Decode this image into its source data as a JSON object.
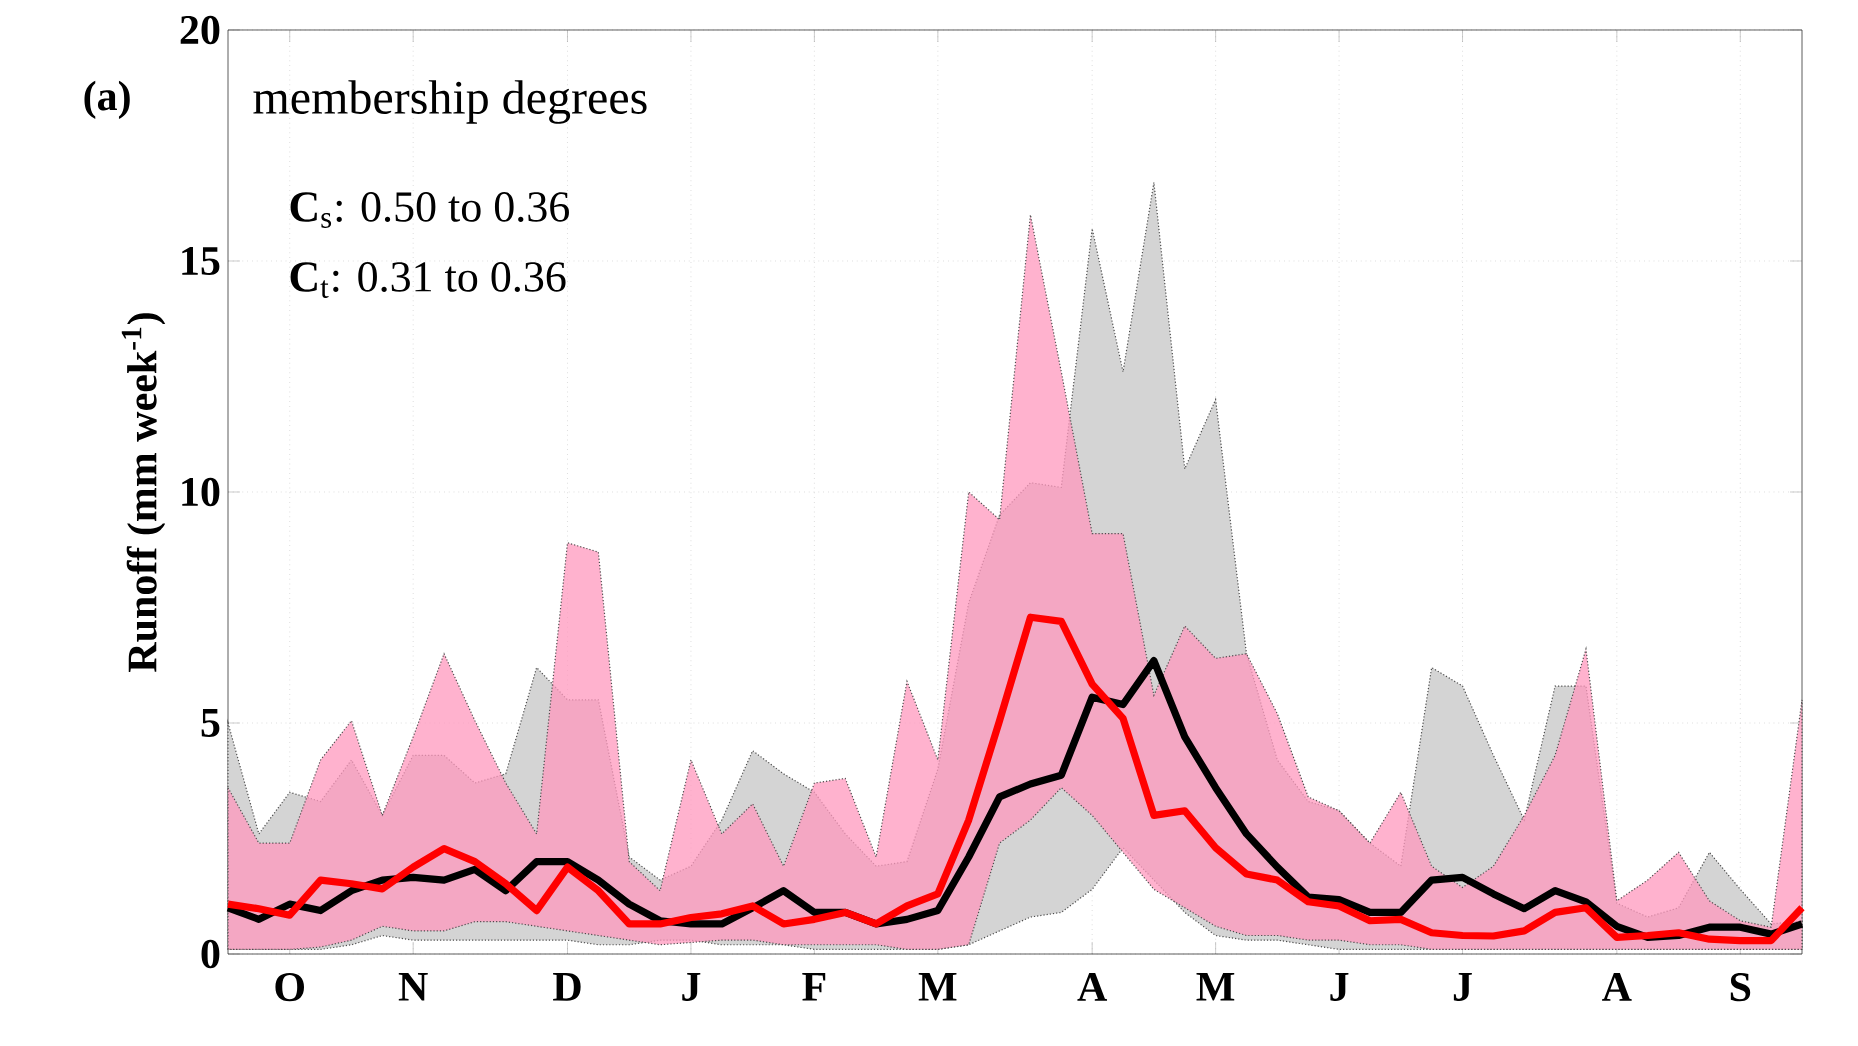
{
  "chart_data": {
    "type": "line",
    "ylabel": "Runoff (mm week$^{-1}$)",
    "annotations": [
      "(a)",
      "membership degrees",
      "**C**$_{s}$: 0.50 to 0.36",
      "**C**$_{t}$: 0.31 to 0.36"
    ],
    "categories": [
      null,
      null,
      "O",
      null,
      null,
      null,
      "N",
      null,
      null,
      null,
      null,
      "D",
      null,
      null,
      null,
      "J",
      null,
      null,
      null,
      "F",
      null,
      null,
      null,
      "M",
      null,
      null,
      null,
      null,
      "A",
      null,
      null,
      null,
      "M",
      null,
      null,
      null,
      "J",
      null,
      null,
      null,
      "J",
      null,
      null,
      null,
      null,
      "A",
      null,
      null,
      null,
      "S",
      null,
      null
    ],
    "series": [
      {
        "color": "#000000",
        "values": [
          1.0,
          0.75,
          1.08,
          0.94,
          1.37,
          1.6,
          1.66,
          1.6,
          1.83,
          1.37,
          2.0,
          2.0,
          1.6,
          1.08,
          0.72,
          0.65,
          0.65,
          1.0,
          1.37,
          0.9,
          0.9,
          0.65,
          0.75,
          0.94,
          2.1,
          3.4,
          3.68,
          3.87,
          5.56,
          5.4,
          6.35,
          4.7,
          3.6,
          2.6,
          1.88,
          1.23,
          1.18,
          0.9,
          0.9,
          1.6,
          1.66,
          1.3,
          0.98,
          1.37,
          1.13,
          0.6,
          0.36,
          0.4,
          0.58,
          0.58,
          0.43,
          0.65
        ],
        "lower": [
          0.1,
          0.1,
          0.1,
          0.1,
          0.2,
          0.4,
          0.3,
          0.3,
          0.3,
          0.3,
          0.3,
          0.3,
          0.2,
          0.2,
          0.3,
          0.3,
          0.2,
          0.2,
          0.2,
          0.1,
          0.1,
          0.1,
          0.1,
          0.1,
          0.2,
          0.5,
          0.8,
          0.9,
          1.4,
          2.3,
          1.6,
          0.9,
          0.4,
          0.3,
          0.3,
          0.2,
          0.1,
          0.1,
          0.1,
          0.1,
          0.1,
          0.1,
          0.1,
          0.1,
          0.1,
          0.1,
          0.1,
          0.1,
          0.1,
          0.1,
          0.1,
          0.1
        ],
        "upper": [
          5.0,
          2.6,
          3.5,
          3.3,
          4.2,
          3.0,
          4.3,
          4.3,
          3.7,
          3.9,
          6.2,
          5.5,
          5.5,
          2.1,
          1.6,
          1.9,
          2.9,
          4.4,
          3.9,
          3.5,
          2.6,
          1.9,
          2.0,
          4.0,
          7.6,
          9.5,
          10.2,
          10.1,
          15.7,
          12.6,
          16.7,
          10.5,
          12.0,
          6.5,
          4.2,
          3.3,
          3.1,
          2.4,
          1.9,
          6.2,
          5.8,
          4.3,
          2.9,
          5.8,
          5.8,
          1.1,
          0.8,
          1.0,
          2.2,
          1.4,
          0.65,
          0.72
        ]
      },
      {
        "color": "#ff0000",
        "values": [
          1.08,
          0.98,
          0.84,
          1.6,
          1.52,
          1.41,
          1.88,
          2.28,
          2.0,
          1.52,
          0.94,
          1.88,
          1.37,
          0.65,
          0.65,
          0.79,
          0.87,
          1.04,
          0.65,
          0.75,
          0.9,
          0.65,
          1.04,
          1.3,
          2.9,
          5.05,
          7.29,
          7.2,
          5.84,
          5.1,
          3.0,
          3.1,
          2.3,
          1.73,
          1.6,
          1.13,
          1.04,
          0.72,
          0.75,
          0.46,
          0.4,
          0.39,
          0.5,
          0.9,
          1.0,
          0.36,
          0.4,
          0.46,
          0.32,
          0.29,
          0.29,
          1.0
        ],
        "lower": [
          0.1,
          0.1,
          0.1,
          0.15,
          0.3,
          0.6,
          0.5,
          0.5,
          0.7,
          0.7,
          0.6,
          0.5,
          0.4,
          0.3,
          0.2,
          0.25,
          0.3,
          0.3,
          0.2,
          0.2,
          0.2,
          0.2,
          0.1,
          0.1,
          0.2,
          2.4,
          2.9,
          3.6,
          3.0,
          2.2,
          1.4,
          1.0,
          0.6,
          0.4,
          0.4,
          0.3,
          0.3,
          0.2,
          0.2,
          0.1,
          0.1,
          0.1,
          0.1,
          0.1,
          0.1,
          0.1,
          0.1,
          0.1,
          0.1,
          0.1,
          0.1,
          0.1
        ],
        "upper": [
          3.6,
          2.4,
          2.4,
          4.2,
          5.05,
          3.0,
          4.7,
          6.5,
          5.05,
          3.7,
          2.6,
          8.9,
          8.7,
          2.0,
          1.37,
          4.2,
          2.6,
          3.25,
          1.9,
          3.7,
          3.8,
          2.1,
          5.9,
          4.2,
          10.0,
          9.4,
          16.0,
          12.6,
          9.1,
          9.1,
          5.6,
          7.1,
          6.4,
          6.5,
          5.2,
          3.4,
          3.1,
          2.4,
          3.5,
          1.9,
          1.44,
          1.9,
          3.0,
          4.3,
          6.6,
          1.15,
          1.6,
          2.2,
          1.15,
          0.72,
          0.58,
          5.5
        ]
      }
    ],
    "ylim": [
      0,
      20
    ],
    "yticks": [
      0,
      5,
      10,
      15,
      20
    ],
    "grid": true,
    "marker": "none",
    "line_style": "solid"
  }
}
